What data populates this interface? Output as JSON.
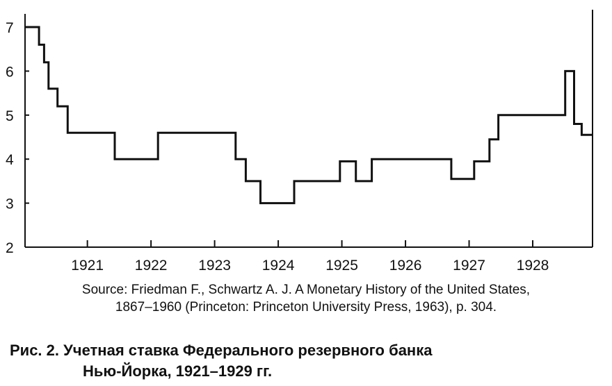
{
  "chart_data": {
    "type": "line",
    "step": true,
    "x_ticks": [
      "1921",
      "1922",
      "1923",
      "1924",
      "1925",
      "1926",
      "1927",
      "1928"
    ],
    "x_tick_values": [
      1921,
      1922,
      1923,
      1924,
      1925,
      1926,
      1927,
      1928
    ],
    "y_ticks": [
      "2",
      "3",
      "4",
      "5",
      "6",
      "7"
    ],
    "y_tick_values": [
      2,
      3,
      4,
      5,
      6,
      7
    ],
    "xlim": [
      1920.02,
      1928.94
    ],
    "ylim": [
      2,
      7.3
    ],
    "grid": false,
    "series": [
      {
        "points": [
          [
            1920.02,
            7.0
          ],
          [
            1920.24,
            7.0
          ],
          [
            1920.24,
            6.6
          ],
          [
            1920.32,
            6.6
          ],
          [
            1920.32,
            6.2
          ],
          [
            1920.39,
            6.2
          ],
          [
            1920.39,
            5.6
          ],
          [
            1920.53,
            5.6
          ],
          [
            1920.53,
            5.2
          ],
          [
            1920.69,
            5.2
          ],
          [
            1920.69,
            4.6
          ],
          [
            1921.43,
            4.6
          ],
          [
            1921.43,
            4.0
          ],
          [
            1922.11,
            4.0
          ],
          [
            1922.11,
            4.6
          ],
          [
            1923.33,
            4.6
          ],
          [
            1923.33,
            4.0
          ],
          [
            1923.49,
            4.0
          ],
          [
            1923.49,
            3.5
          ],
          [
            1923.72,
            3.5
          ],
          [
            1923.72,
            3.0
          ],
          [
            1924.25,
            3.0
          ],
          [
            1924.25,
            3.5
          ],
          [
            1924.97,
            3.5
          ],
          [
            1924.97,
            3.95
          ],
          [
            1925.22,
            3.95
          ],
          [
            1925.22,
            3.5
          ],
          [
            1925.47,
            3.5
          ],
          [
            1925.47,
            4.0
          ],
          [
            1926.72,
            4.0
          ],
          [
            1926.72,
            3.55
          ],
          [
            1927.08,
            3.55
          ],
          [
            1927.08,
            3.95
          ],
          [
            1927.32,
            3.95
          ],
          [
            1927.32,
            4.45
          ],
          [
            1927.46,
            4.45
          ],
          [
            1927.46,
            5.0
          ],
          [
            1928.51,
            5.0
          ],
          [
            1928.51,
            6.0
          ],
          [
            1928.65,
            6.0
          ],
          [
            1928.65,
            4.8
          ],
          [
            1928.77,
            4.8
          ],
          [
            1928.77,
            4.55
          ],
          [
            1928.94,
            4.55
          ]
        ]
      }
    ]
  },
  "source_text": {
    "line1": "Source: Friedman F., Schwartz A. J. A Monetary History of the United States,",
    "line2": "1867–1960 (Princeton: Princeton University Press, 1963), p. 304."
  },
  "caption": {
    "line1": "Рис. 2. Учетная ставка Федерального резервного банка",
    "line2": "Нью-Йорка, 1921–1929 гг."
  }
}
